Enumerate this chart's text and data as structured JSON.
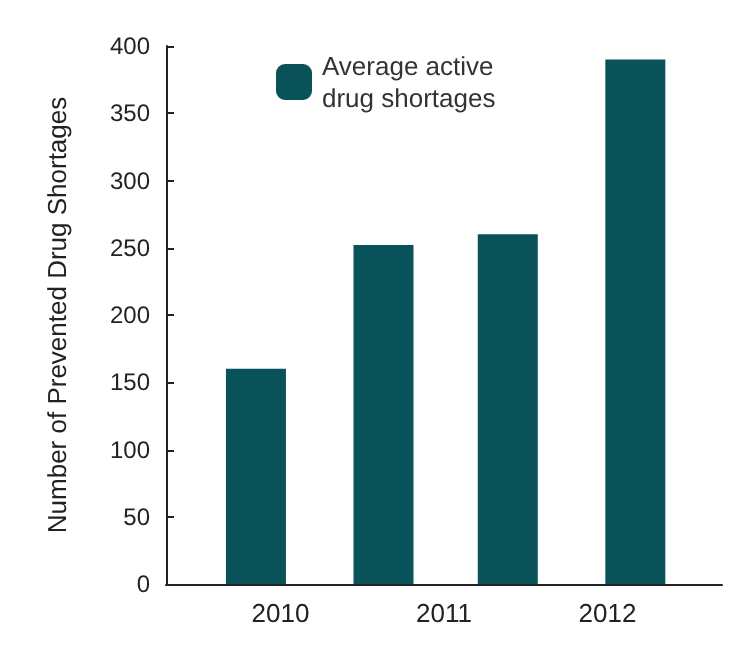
{
  "chart_data": {
    "type": "bar",
    "ylabel": "Number of Prevented Drug Shortages",
    "x": [
      2009.85,
      2010.63,
      2011.39,
      2012.17
    ],
    "series": [
      {
        "name": "Average active drug shortages",
        "color": "#0a5259",
        "values": [
          160,
          252,
          260,
          390
        ]
      }
    ],
    "xlim": [
      2009.3,
      2012.7
    ],
    "xticks": [
      2010,
      2011,
      2012
    ],
    "ylim": [
      0,
      400
    ],
    "yticks": [
      0,
      50,
      100,
      150,
      200,
      250,
      300,
      350,
      400
    ],
    "grid": false,
    "legend": "top left"
  }
}
